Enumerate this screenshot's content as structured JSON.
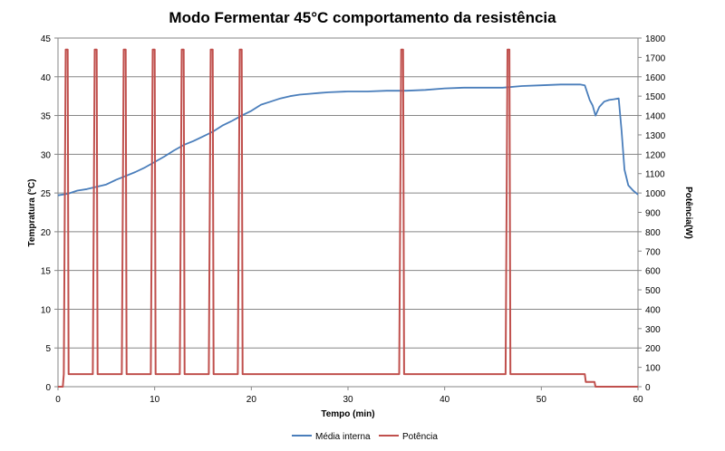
{
  "chart_data": {
    "type": "line",
    "title": "Modo Fermentar 45°C comportamento da resistência",
    "xlabel": "Tempo (min)",
    "ylabel": "Tempratura (°C)",
    "y2label": "Potência(W)",
    "xlim": [
      0,
      60
    ],
    "ylim": [
      0,
      45
    ],
    "y2lim": [
      0,
      1800
    ],
    "xticks": [
      0,
      10,
      20,
      30,
      40,
      50,
      60
    ],
    "yticks": [
      0,
      5,
      10,
      15,
      20,
      25,
      30,
      35,
      40,
      45
    ],
    "y2ticks": [
      0,
      100,
      200,
      300,
      400,
      500,
      600,
      700,
      800,
      900,
      1000,
      1100,
      1200,
      1300,
      1400,
      1500,
      1600,
      1700,
      1800
    ],
    "grid": "horizontal major gridlines (left axis)",
    "legend_position": "bottom",
    "series": [
      {
        "name": "Média interna",
        "axis": "left",
        "color": "#4a7ebb",
        "x": [
          0,
          1,
          2,
          3,
          4,
          5,
          6,
          7,
          8,
          9,
          10,
          11,
          12,
          13,
          14,
          15,
          16,
          17,
          18,
          19,
          20,
          21,
          22,
          23,
          24,
          25,
          26,
          27,
          28,
          30,
          32,
          34,
          36,
          38,
          40,
          42,
          44,
          46,
          48,
          50,
          52,
          54,
          54.5,
          55,
          55.3,
          55.6,
          56,
          56.5,
          57,
          57.5,
          58,
          58.3,
          58.6,
          59,
          59.5,
          60
        ],
        "y": [
          24.7,
          24.9,
          25.3,
          25.5,
          25.8,
          26.1,
          26.7,
          27.2,
          27.7,
          28.3,
          29.0,
          29.7,
          30.5,
          31.2,
          31.7,
          32.3,
          32.9,
          33.7,
          34.3,
          35.0,
          35.6,
          36.4,
          36.8,
          37.2,
          37.5,
          37.7,
          37.8,
          37.9,
          38.0,
          38.1,
          38.1,
          38.2,
          38.2,
          38.3,
          38.5,
          38.6,
          38.6,
          38.6,
          38.8,
          38.9,
          39.0,
          39.0,
          38.9,
          37.0,
          36.3,
          35.0,
          36.1,
          36.8,
          37.0,
          37.1,
          37.2,
          33.0,
          28.0,
          26.0,
          25.3,
          24.8
        ]
      },
      {
        "name": "Potência",
        "axis": "right",
        "color": "#c0504d",
        "x": [
          0,
          0.5,
          0.6,
          0.8,
          1.0,
          1.1,
          3.6,
          3.8,
          4.0,
          4.1,
          6.6,
          6.8,
          7.0,
          7.1,
          9.6,
          9.8,
          10.0,
          10.1,
          12.6,
          12.8,
          13.0,
          13.1,
          15.6,
          15.8,
          16.0,
          16.1,
          18.6,
          18.8,
          19.0,
          19.1,
          35.3,
          35.5,
          35.7,
          35.8,
          46.3,
          46.5,
          46.7,
          46.8,
          54.5,
          54.6,
          55.5,
          55.6,
          60
        ],
        "y": [
          0,
          0,
          65,
          1740,
          1740,
          65,
          65,
          1740,
          1740,
          65,
          65,
          1740,
          1740,
          65,
          65,
          1740,
          1740,
          65,
          65,
          1740,
          1740,
          65,
          65,
          1740,
          1740,
          65,
          65,
          1740,
          1740,
          65,
          65,
          1740,
          1740,
          65,
          65,
          1740,
          1740,
          65,
          65,
          25,
          25,
          0,
          0
        ]
      }
    ]
  }
}
